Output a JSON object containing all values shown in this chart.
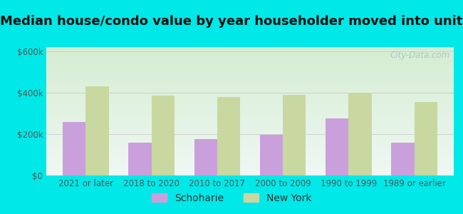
{
  "title": "Median house/condo value by year householder moved into unit",
  "categories": [
    "2021 or later",
    "2018 to 2020",
    "2010 to 2017",
    "2000 to 2009",
    "1990 to 1999",
    "1989 or earlier"
  ],
  "schoharie_values": [
    260000,
    160000,
    175000,
    195000,
    275000,
    160000
  ],
  "newyork_values": [
    430000,
    385000,
    380000,
    390000,
    400000,
    355000
  ],
  "schoharie_color": "#c9a0dc",
  "newyork_color": "#c8d8a0",
  "background_outer": "#00e8e8",
  "background_inner": "#e8f5ee",
  "yticks": [
    0,
    200000,
    400000,
    600000
  ],
  "ytick_labels": [
    "$0",
    "$200k",
    "$400k",
    "$600k"
  ],
  "bar_width": 0.35,
  "title_fontsize": 13,
  "tick_fontsize": 8.5,
  "legend_fontsize": 10,
  "watermark_text": "City-Data.com",
  "watermark_color": "#aabbc8",
  "grid_color": "#cccccc"
}
